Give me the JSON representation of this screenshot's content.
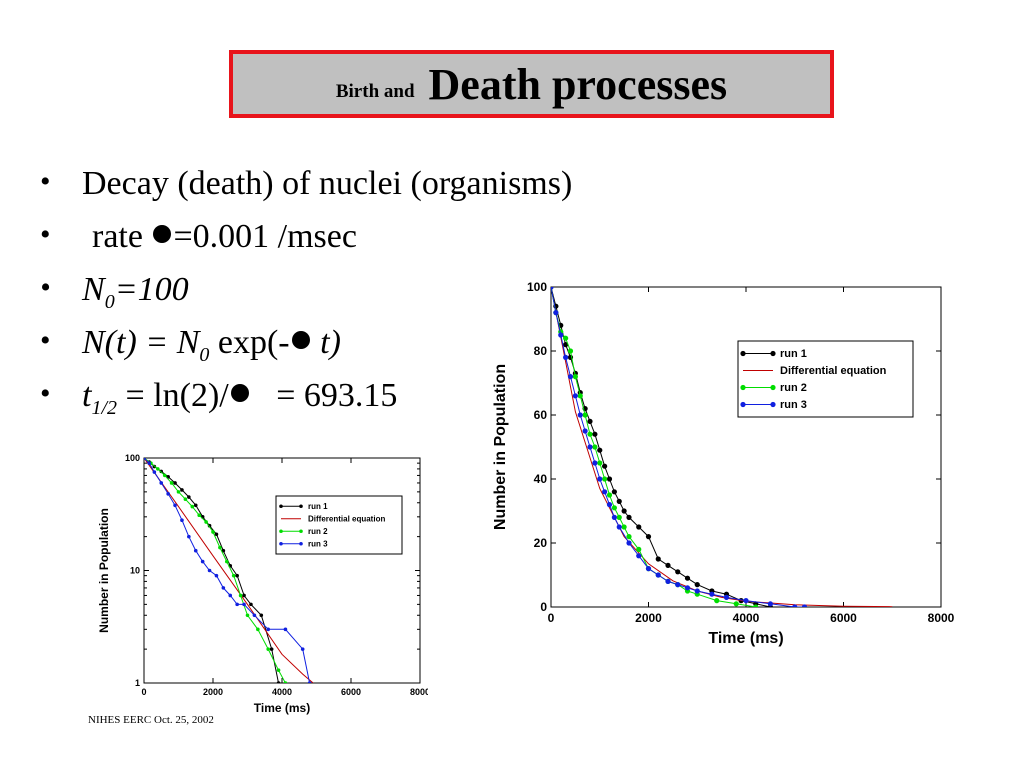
{
  "slide": {
    "title_small": "Birth and",
    "title_big": "Death processes",
    "bullets": {
      "b1": "Decay (death) of nuclei (organisms)",
      "b2_pre": "rate ",
      "b2_post": "=0.001 /msec",
      "b3_n": "N",
      "b3_sub": "0",
      "b3_rest": "=100",
      "b4_a": "N(t) = N",
      "b4_sub": "0",
      "b4_b": " exp(-",
      "b4_c": " t)",
      "b5_t": "t",
      "b5_sub": "1/2",
      "b5_a": " = ln(2)/",
      "b5_b": "   = 693.15"
    },
    "footer": "NIHES EERC Oct. 25, 2002",
    "colors": {
      "title_border": "#e8141b",
      "title_bg": "#c0c0c0"
    }
  },
  "chart_data": [
    {
      "type": "scatter",
      "scale": "log",
      "xlabel": "Time (ms)",
      "ylabel": "Number  in Population",
      "xlim": [
        0,
        8000
      ],
      "ylim": [
        1,
        100
      ],
      "xticks": [
        "0",
        "2000",
        "4000",
        "6000",
        "8000"
      ],
      "yticks": [
        "1",
        "10",
        "100"
      ],
      "legend_position": "top-right",
      "series": [
        {
          "name": "run 1",
          "color": "#000000",
          "x": [
            0,
            150,
            300,
            500,
            700,
            900,
            1100,
            1300,
            1500,
            1700,
            1900,
            2100,
            2300,
            2500,
            2700,
            2900,
            3100,
            3400,
            3700,
            3900
          ],
          "y": [
            100,
            92,
            84,
            76,
            68,
            60,
            52,
            45,
            38,
            30,
            25,
            21,
            15,
            11,
            9,
            6,
            5,
            4,
            2,
            1
          ]
        },
        {
          "name": "Differential equation",
          "color": "#c00000",
          "line": true,
          "x": [
            0,
            1000,
            2000,
            3000,
            4000,
            4600,
            4900
          ],
          "y": [
            100,
            37,
            13.5,
            5,
            1.8,
            1.2,
            1
          ]
        },
        {
          "name": "run 2",
          "color": "#00dd00",
          "x": [
            0,
            200,
            400,
            600,
            800,
            1000,
            1200,
            1400,
            1600,
            1800,
            2000,
            2200,
            2400,
            2600,
            2800,
            3000,
            3300,
            3600,
            3900,
            4100
          ],
          "y": [
            100,
            90,
            80,
            70,
            60,
            50,
            43,
            37,
            31,
            27,
            22,
            16,
            12,
            9,
            6,
            4,
            3,
            2,
            1.3,
            1
          ]
        },
        {
          "name": "run 3",
          "color": "#1020e0",
          "x": [
            0,
            150,
            300,
            500,
            700,
            900,
            1100,
            1300,
            1500,
            1700,
            1900,
            2100,
            2300,
            2500,
            2700,
            2900,
            3200,
            3600,
            4100,
            4600,
            4800
          ],
          "y": [
            100,
            90,
            75,
            60,
            48,
            38,
            28,
            20,
            15,
            12,
            10,
            9,
            7,
            6,
            5,
            5,
            4,
            3,
            3,
            2,
            1
          ]
        }
      ]
    },
    {
      "type": "scatter",
      "xlabel": "Time (ms)",
      "ylabel": "Number  in Population",
      "xlim": [
        0,
        8000
      ],
      "ylim": [
        0,
        100
      ],
      "xticks": [
        "0",
        "2000",
        "4000",
        "6000",
        "8000"
      ],
      "yticks": [
        "0",
        "20",
        "40",
        "60",
        "80",
        "100"
      ],
      "legend_position": "top-right",
      "series": [
        {
          "name": "run 1",
          "color": "#000000",
          "x": [
            0,
            100,
            200,
            300,
            400,
            500,
            600,
            700,
            800,
            900,
            1000,
            1100,
            1200,
            1300,
            1400,
            1500,
            1600,
            1800,
            2000,
            2200,
            2400,
            2600,
            2800,
            3000,
            3300,
            3600,
            3900,
            4200,
            4500
          ],
          "y": [
            100,
            94,
            88,
            82,
            78,
            73,
            67,
            62,
            58,
            54,
            49,
            44,
            40,
            36,
            33,
            30,
            28,
            25,
            22,
            15,
            13,
            11,
            9,
            7,
            5,
            4,
            2,
            1,
            0
          ]
        },
        {
          "name": "Differential equation",
          "color": "#c00000",
          "line": true,
          "x": [
            0,
            500,
            1000,
            1500,
            2000,
            2500,
            3000,
            3500,
            4000,
            5000,
            6000,
            7000
          ],
          "y": [
            100,
            61,
            37,
            22,
            13.5,
            8.2,
            5,
            3,
            1.8,
            0.7,
            0.25,
            0.1
          ]
        },
        {
          "name": "run 2",
          "color": "#00dd00",
          "x": [
            0,
            100,
            200,
            300,
            400,
            500,
            600,
            700,
            800,
            900,
            1000,
            1100,
            1200,
            1300,
            1400,
            1500,
            1600,
            1800,
            2000,
            2200,
            2400,
            2600,
            2800,
            3000,
            3400,
            3800,
            4200
          ],
          "y": [
            100,
            92,
            86,
            84,
            80,
            72,
            66,
            60,
            54,
            50,
            45,
            40,
            35,
            31,
            28,
            25,
            22,
            18,
            12,
            10,
            8,
            7,
            5,
            4,
            2,
            1,
            0
          ]
        },
        {
          "name": "run 3",
          "color": "#1020e0",
          "x": [
            0,
            100,
            200,
            300,
            400,
            500,
            600,
            700,
            800,
            900,
            1000,
            1100,
            1200,
            1300,
            1400,
            1600,
            1800,
            2000,
            2200,
            2400,
            2600,
            2800,
            3000,
            3300,
            3600,
            4000,
            4500,
            5000,
            5200
          ],
          "y": [
            100,
            92,
            85,
            78,
            72,
            66,
            60,
            55,
            50,
            45,
            40,
            36,
            32,
            28,
            25,
            20,
            16,
            12,
            10,
            8,
            7,
            6,
            5,
            4,
            3,
            2,
            1,
            0,
            0
          ]
        }
      ]
    }
  ]
}
